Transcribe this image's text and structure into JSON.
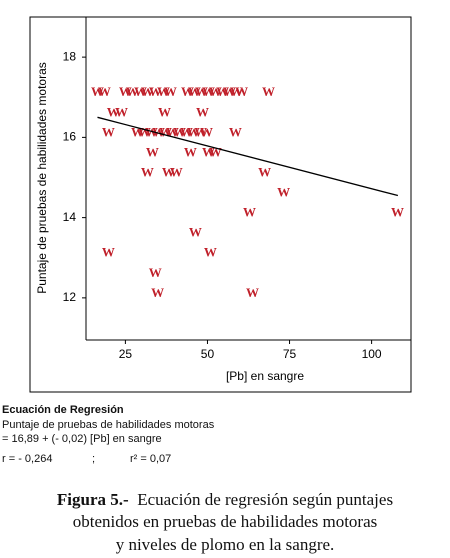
{
  "chart_data": {
    "type": "scatter",
    "x_label": "[Pb] en sangre",
    "y_label": "Puntaje de pruebas de habilidades motoras",
    "xlim": [
      13,
      112
    ],
    "ylim": [
      10.95,
      19
    ],
    "xticks": [
      25,
      50,
      75,
      100
    ],
    "yticks": [
      12,
      14,
      16,
      18
    ],
    "marker": "W",
    "color": "#c0202a",
    "series": [
      {
        "x": [
          16.5,
          18.6,
          25,
          27.1,
          29.6,
          31.7,
          34.1,
          36.6,
          38.7,
          43.9,
          46,
          48.2,
          50.3,
          52.4,
          54.6,
          56.7,
          58.8,
          60.4,
          68.6,
          21.3,
          23.8,
          36.9,
          48.5,
          19.8,
          28.7,
          30.8,
          32.9,
          35.1,
          37.2,
          39.3,
          41.5,
          43.6,
          45.7,
          47.9,
          49.7,
          58.5,
          33.2,
          44.8,
          50.3,
          52.4,
          31.7,
          38.1,
          40.5,
          67.4,
          73.2,
          62.8,
          107.9,
          46.3,
          19.8,
          50.9,
          34.1,
          34.8,
          63.7
        ],
        "values": [
          17.1,
          17.1,
          17.1,
          17.1,
          17.1,
          17.1,
          17.1,
          17.1,
          17.1,
          17.1,
          17.1,
          17.1,
          17.1,
          17.1,
          17.1,
          17.1,
          17.1,
          17.1,
          17.1,
          16.6,
          16.6,
          16.6,
          16.6,
          16.1,
          16.1,
          16.1,
          16.1,
          16.1,
          16.1,
          16.1,
          16.1,
          16.1,
          16.1,
          16.1,
          16.1,
          16.1,
          15.6,
          15.6,
          15.6,
          15.6,
          15.1,
          15.1,
          15.1,
          15.1,
          14.6,
          14.1,
          14.1,
          13.6,
          13.1,
          13.1,
          12.6,
          12.1,
          12.1
        ]
      }
    ],
    "regression_line": {
      "x": [
        16.5,
        108
      ],
      "values": [
        16.5,
        14.55
      ]
    }
  },
  "equation": {
    "title": "Ecuación de Regresión",
    "line1": "Puntaje de pruebas de habilidades motoras",
    "line2": "= 16,89 + (- 0,02) [Pb] en sangre",
    "r": "r = - 0,264",
    "sep": ";",
    "r2": "r² = 0,07"
  },
  "caption": {
    "label": "Figura 5.-",
    "line1": "Ecuación de regresión según puntajes",
    "line2": "obtenidos en pruebas de habilidades motoras",
    "line3": "y niveles de plomo en la sangre."
  }
}
